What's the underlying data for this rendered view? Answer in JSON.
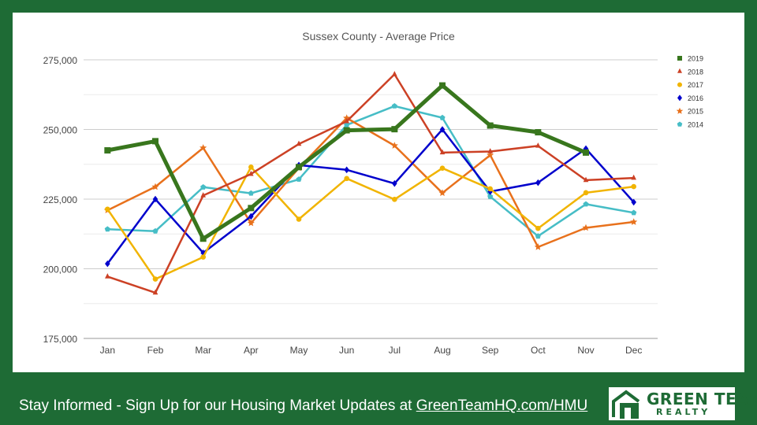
{
  "footer": {
    "text": "Stay Informed - Sign Up for our Housing Market Updates at ",
    "link": "GreenTeamHQ.com/HMU"
  },
  "logo": {
    "line1": "GREEN TEAM",
    "line2": "REALTY"
  },
  "colors": {
    "background": "#1e6b35",
    "panel": "#ffffff"
  },
  "chart_data": {
    "type": "line",
    "title": "Sussex County - Average Price",
    "xlabel": "",
    "ylabel": "",
    "ylim": [
      175000,
      275000
    ],
    "yticks": [
      175000,
      200000,
      225000,
      250000,
      275000
    ],
    "ytick_labels": [
      "175,000",
      "200,000",
      "225,000",
      "250,000",
      "275,000"
    ],
    "grid": true,
    "legend_position": "right",
    "categories": [
      "Jan",
      "Feb",
      "Mar",
      "Apr",
      "May",
      "Jun",
      "Jul",
      "Aug",
      "Sep",
      "Oct",
      "Nov",
      "Dec"
    ],
    "series": [
      {
        "name": "2019",
        "color": "#38761d",
        "marker": "square",
        "width": 5,
        "values": [
          242500,
          245800,
          210800,
          221800,
          236500,
          249700,
          250100,
          265800,
          251400,
          249000,
          241700,
          null
        ]
      },
      {
        "name": "2018",
        "color": "#cc4125",
        "marker": "triangle",
        "width": 2.5,
        "values": [
          197200,
          191400,
          226300,
          234000,
          244800,
          252900,
          269800,
          241700,
          242100,
          244100,
          231800,
          232600
        ]
      },
      {
        "name": "2017",
        "color": "#f1b400",
        "marker": "circle",
        "width": 2.5,
        "values": [
          221400,
          196300,
          204200,
          236500,
          217800,
          232400,
          224900,
          236100,
          228700,
          214500,
          227300,
          229500
        ]
      },
      {
        "name": "2016",
        "color": "#0000cc",
        "marker": "diamond",
        "width": 2.5,
        "values": [
          201800,
          225000,
          205700,
          218800,
          237200,
          235500,
          230600,
          250000,
          227700,
          230900,
          243100,
          223900
        ]
      },
      {
        "name": "2015",
        "color": "#e8711c",
        "marker": "star",
        "width": 2.5,
        "values": [
          221000,
          229400,
          243400,
          216400,
          236200,
          254100,
          244200,
          227200,
          240800,
          207800,
          214700,
          216800
        ]
      },
      {
        "name": "2014",
        "color": "#46bdc6",
        "marker": "pentagon",
        "width": 2.5,
        "values": [
          214200,
          213500,
          229300,
          227100,
          232100,
          251600,
          258400,
          254200,
          225900,
          211700,
          223200,
          220100
        ]
      }
    ]
  }
}
